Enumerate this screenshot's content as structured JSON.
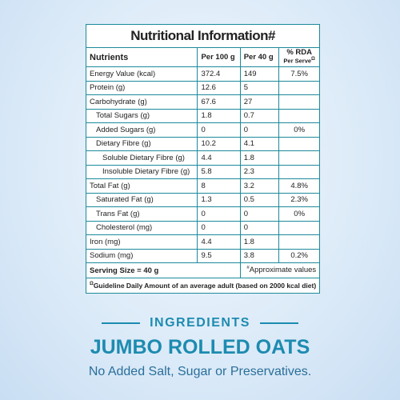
{
  "table": {
    "title": "Nutritional Information#",
    "header": [
      "Nutrients",
      "Per 100 g",
      "Per 40 g",
      {
        "main": "% RDA",
        "sub": "Per Serve",
        "mark": "Ω"
      }
    ],
    "rows": [
      [
        "Energy Value (kcal)",
        "372.4",
        "149",
        "7.5%"
      ],
      [
        "Protein (g)",
        "12.6",
        "5"
      ],
      [
        "Carbohydrate (g)",
        "67.6",
        "27"
      ],
      [
        "Total Sugars (g)",
        "1.8",
        "0.7"
      ],
      [
        "Added Sugars (g)",
        "0",
        "0",
        "0%"
      ],
      [
        "Dietary Fibre (g)",
        "10.2",
        "4.1"
      ],
      [
        "Soluble Dietary Fibre (g)",
        "4.4",
        "1.8"
      ],
      [
        "Insoluble Dietary Fibre (g)",
        "5.8",
        "2.3"
      ],
      [
        "Total Fat (g)",
        "8",
        "3.2",
        "4.8%"
      ],
      [
        "Saturated Fat (g)",
        "1.3",
        "0.5",
        "2.3%"
      ],
      [
        "Trans Fat (g)",
        "0",
        "0",
        "0%"
      ],
      [
        "Cholesterol (mg)",
        "0",
        "0"
      ],
      [
        "Iron (mg)",
        "4.4",
        "1.8"
      ],
      [
        "Sodium (mg)",
        "9.5",
        "3.8",
        "0.2%"
      ]
    ],
    "serving": "Serving Size = 40 g",
    "approx_mark": "#",
    "approx": "Approximate values",
    "guideline_mark": "Ω",
    "guideline": "Guideline Daily Amount of an average adult (based on 2000 kcal diet)"
  },
  "ingredients": {
    "heading": "INGREDIENTS",
    "product": "JUMBO ROLLED OATS",
    "note": "No Added Salt, Sugar or Preservatives."
  }
}
